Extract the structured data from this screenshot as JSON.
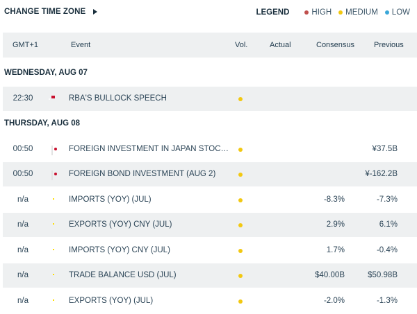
{
  "toolbar": {
    "timezone_label": "CHANGE TIME ZONE",
    "legend_title": "LEGEND",
    "legend": [
      {
        "label": "HIGH",
        "color": "#c0504d"
      },
      {
        "label": "MEDIUM",
        "color": "#f2c811"
      },
      {
        "label": "LOW",
        "color": "#3aa7d8"
      }
    ]
  },
  "columns": {
    "time": "GMT+1",
    "event": "Event",
    "vol": "Vol.",
    "actual": "Actual",
    "consensus": "Consensus",
    "previous": "Previous"
  },
  "days": [
    {
      "label": "WEDNESDAY, AUG 07",
      "events": [
        {
          "time": "22:30",
          "flag": "au",
          "event": "RBA'S BULLOCK SPEECH",
          "volatility": "medium",
          "actual": "",
          "consensus": "",
          "previous": ""
        }
      ]
    },
    {
      "label": "THURSDAY, AUG 08",
      "events": [
        {
          "time": "00:50",
          "flag": "jp",
          "event": "FOREIGN INVESTMENT IN JAPAN STOCKS ...",
          "volatility": "medium",
          "actual": "",
          "consensus": "",
          "previous": "¥37.5B"
        },
        {
          "time": "00:50",
          "flag": "jp",
          "event": "FOREIGN BOND INVESTMENT (AUG 2)",
          "volatility": "medium",
          "actual": "",
          "consensus": "",
          "previous": "¥-162.2B"
        },
        {
          "time": "n/a",
          "flag": "cn",
          "event": "IMPORTS (YOY) (JUL)",
          "volatility": "medium",
          "actual": "",
          "consensus": "-8.3%",
          "previous": "-7.3%"
        },
        {
          "time": "n/a",
          "flag": "cn",
          "event": "EXPORTS (YOY) CNY (JUL)",
          "volatility": "medium",
          "actual": "",
          "consensus": "2.9%",
          "previous": "6.1%"
        },
        {
          "time": "n/a",
          "flag": "cn",
          "event": "IMPORTS (YOY) CNY (JUL)",
          "volatility": "medium",
          "actual": "",
          "consensus": "1.7%",
          "previous": "-0.4%"
        },
        {
          "time": "n/a",
          "flag": "cn",
          "event": "TRADE BALANCE USD (JUL)",
          "volatility": "medium",
          "actual": "",
          "consensus": "$40.00B",
          "previous": "$50.98B"
        },
        {
          "time": "n/a",
          "flag": "cn",
          "event": "EXPORTS (YOY) (JUL)",
          "volatility": "medium",
          "actual": "",
          "consensus": "-2.0%",
          "previous": "-1.3%"
        }
      ]
    }
  ]
}
